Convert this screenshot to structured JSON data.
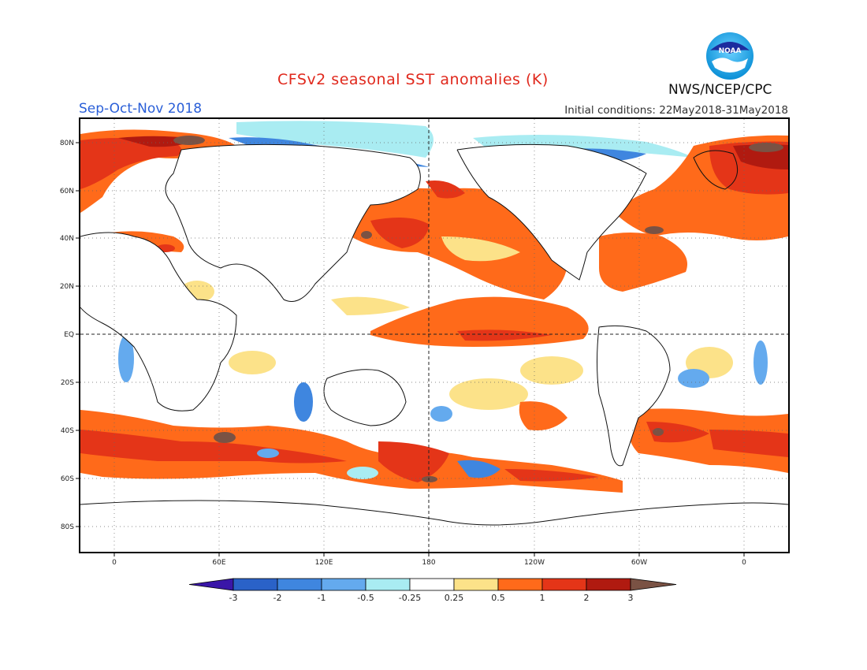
{
  "header": {
    "title": "CFSv2 seasonal SST anomalies (K)",
    "season": "Sep-Oct-Nov 2018",
    "initial_conditions": "Initial conditions: 22May2018-31May2018",
    "agency": "NWS/NCEP/CPC",
    "logo_text": "NOAA"
  },
  "map": {
    "lat_labels": [
      "80N",
      "60N",
      "40N",
      "20N",
      "EQ",
      "20S",
      "40S",
      "60S",
      "80S"
    ],
    "lon_labels": [
      "0",
      "60E",
      "120E",
      "180",
      "120W",
      "60W",
      "0"
    ]
  },
  "colorbar": {
    "labels": [
      "-3",
      "-2",
      "-1",
      "-0.5",
      "-0.25",
      "0.25",
      "0.5",
      "1",
      "2",
      "3"
    ],
    "colors": [
      "#3a16a8",
      "#2a62c8",
      "#3f86df",
      "#64aaee",
      "#a9ecf2",
      "#ffffff",
      "#fce289",
      "#ff6a1a",
      "#e43518",
      "#b01a10",
      "#7a5244"
    ]
  }
}
